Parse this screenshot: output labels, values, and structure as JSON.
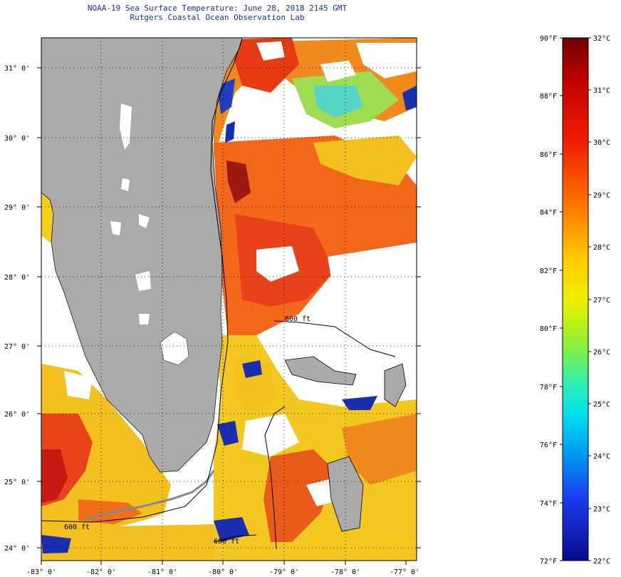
{
  "title": {
    "line1": "NOAA-19 Sea Surface Temperature:  June 28, 2018 2145 GMT",
    "line2": "Rutgers Coastal Ocean Observation Lab"
  },
  "map": {
    "lat_labels": [
      "31° 0'",
      "30° 0'",
      "29° 0'",
      "28° 0'",
      "27° 0'",
      "26° 0'",
      "25° 0'",
      "24° 0'"
    ],
    "lon_labels": [
      "-83° 0'",
      "-82° 0'",
      "-81° 0'",
      "-80° 0'",
      "-79° 0'",
      "-78° 0'",
      "-77° 0'"
    ],
    "contour_labels": [
      "600 ft",
      "600 ft",
      "600 ft"
    ]
  },
  "colorbar": {
    "f_labels": [
      "90°F",
      "88°F",
      "86°F",
      "84°F",
      "82°F",
      "80°F",
      "78°F",
      "76°F",
      "74°F",
      "72°F"
    ],
    "c_labels": [
      "32°C",
      "31°C",
      "30°C",
      "29°C",
      "28°C",
      "27°C",
      "26°C",
      "25°C",
      "24°C",
      "23°C",
      "22°C"
    ]
  },
  "colors": {
    "land": "#aaaaaa",
    "hot": "#d4200f",
    "warm": "#f47a1c",
    "yellow": "#f0d81a",
    "cool": "#33c7df",
    "cold": "#1a2fb0"
  }
}
